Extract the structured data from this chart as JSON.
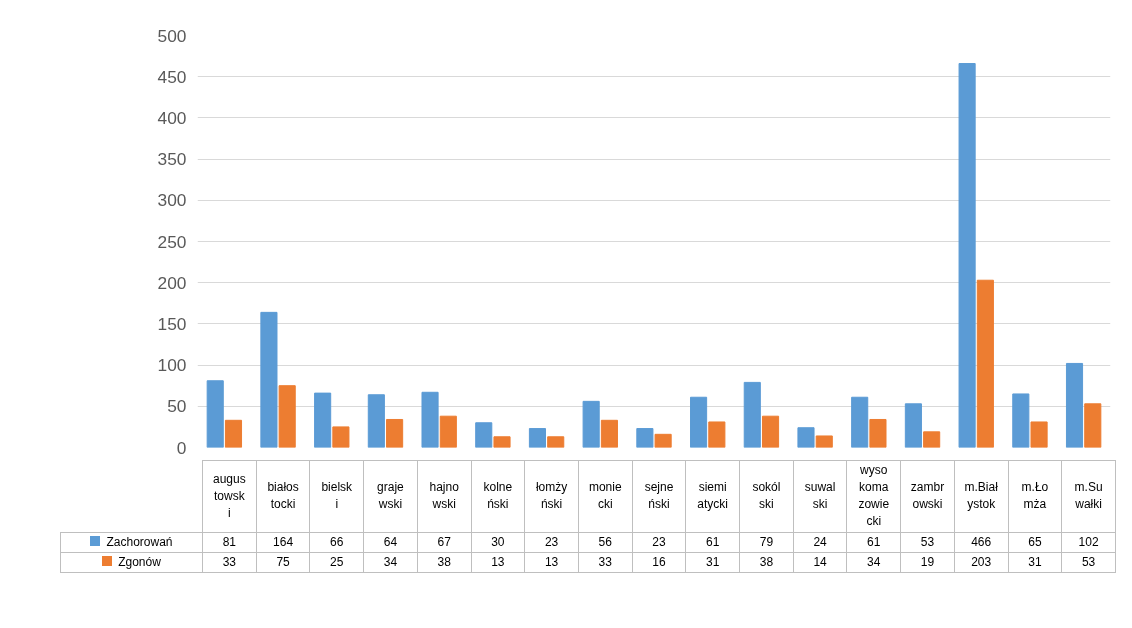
{
  "chart_data": {
    "type": "bar",
    "categories": [
      "augustowski",
      "białostocki",
      "bielski",
      "grajewski",
      "hajnowski",
      "kolneński",
      "łomżyński",
      "moniecki",
      "sejneński",
      "siemiatycki",
      "sokólski",
      "suwalski",
      "wysokomazowiecki",
      "zambrowski",
      "m.Białystok",
      "m.Łomża",
      "m.Suwałki"
    ],
    "series": [
      {
        "name": "Zachorowań",
        "color": "#5b9bd5",
        "values": [
          81,
          164,
          66,
          64,
          67,
          30,
          23,
          56,
          23,
          61,
          79,
          24,
          61,
          53,
          466,
          65,
          102
        ]
      },
      {
        "name": "Zgonów",
        "color": "#ed7d31",
        "values": [
          33,
          75,
          25,
          34,
          38,
          13,
          13,
          33,
          16,
          31,
          38,
          14,
          34,
          19,
          203,
          31,
          53
        ]
      }
    ],
    "ylim": [
      0,
      500
    ],
    "yticks": [
      0,
      50,
      100,
      150,
      200,
      250,
      300,
      350,
      400,
      450,
      500
    ],
    "grid": "y",
    "legend": "bottom",
    "data_labels": true
  }
}
